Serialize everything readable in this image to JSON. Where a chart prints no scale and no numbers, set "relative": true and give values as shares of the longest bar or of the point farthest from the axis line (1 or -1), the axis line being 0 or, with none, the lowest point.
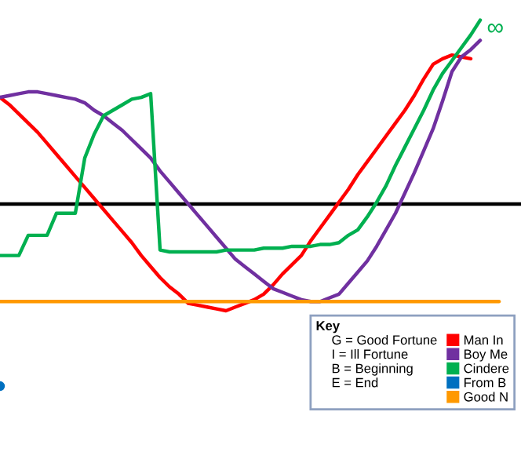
{
  "chart_data": {
    "type": "line",
    "relative": true,
    "legend": "bottom right",
    "legend_title": "Key",
    "categories": [
      null,
      null,
      null,
      null,
      null,
      null,
      null,
      null,
      null,
      null,
      null,
      null,
      null,
      null,
      null,
      null,
      null,
      null,
      null,
      null,
      null,
      null,
      null,
      null,
      null,
      null,
      null,
      null,
      null,
      null,
      null,
      null,
      null,
      null,
      null,
      null,
      null,
      null,
      null,
      null,
      null,
      null,
      null,
      null,
      null,
      null,
      null,
      null,
      null,
      null,
      null,
      null,
      null,
      null,
      null,
      null
    ],
    "annotations": [
      {
        "text": "∞"
      },
      "G = Good Fortune",
      "I = Ill Fortune",
      "B = Beginning",
      "E = End"
    ],
    "series": [
      {
        "name": "Man In",
        "color": "#ff0000",
        "values": [
          0.58,
          0.54,
          0.49,
          0.44,
          0.39,
          0.33,
          0.27,
          0.21,
          0.15,
          0.09,
          0.03,
          -0.03,
          -0.09,
          -0.15,
          -0.21,
          -0.28,
          -0.34,
          -0.4,
          -0.45,
          -0.49,
          -0.54,
          -0.55,
          -0.56,
          -0.57,
          -0.58,
          -0.56,
          -0.54,
          -0.52,
          -0.49,
          -0.44,
          -0.38,
          -0.33,
          -0.28,
          -0.2,
          -0.13,
          -0.06,
          0.01,
          0.08,
          0.16,
          0.23,
          0.3,
          0.37,
          0.44,
          0.51,
          0.59,
          0.68,
          0.76,
          0.79,
          0.81,
          0.8,
          0.79,
          null,
          null,
          null,
          null,
          null
        ]
      },
      {
        "name": "Boy Me",
        "color": "#7030a0",
        "values": [
          0.58,
          0.59,
          0.6,
          0.61,
          0.61,
          0.6,
          0.59,
          0.58,
          0.57,
          0.55,
          0.51,
          0.48,
          0.44,
          0.4,
          0.35,
          0.3,
          0.25,
          0.18,
          0.12,
          0.06,
          0,
          -0.06,
          -0.12,
          -0.18,
          -0.24,
          -0.3,
          -0.34,
          -0.38,
          -0.42,
          -0.46,
          -0.48,
          -0.5,
          -0.52,
          -0.53,
          -0.53,
          -0.51,
          -0.49,
          -0.43,
          -0.37,
          -0.31,
          -0.23,
          -0.14,
          -0.05,
          0.06,
          0.17,
          0.29,
          0.41,
          0.56,
          0.72,
          0.8,
          0.84,
          0.89,
          null,
          null,
          null,
          null
        ]
      },
      {
        "name": "Cindere",
        "color": "#00b050",
        "values": [
          -0.28,
          -0.28,
          -0.28,
          -0.17,
          -0.17,
          -0.17,
          -0.05,
          -0.05,
          -0.05,
          0.25,
          0.38,
          0.48,
          0.51,
          0.54,
          0.57,
          0.58,
          0.6,
          -0.25,
          -0.26,
          -0.26,
          -0.26,
          -0.26,
          -0.26,
          -0.26,
          -0.25,
          -0.25,
          -0.25,
          -0.25,
          -0.24,
          -0.24,
          -0.24,
          -0.23,
          -0.23,
          -0.23,
          -0.22,
          -0.22,
          -0.21,
          -0.17,
          -0.14,
          -0.07,
          0.01,
          0.1,
          0.21,
          0.31,
          0.41,
          0.51,
          0.62,
          0.71,
          0.78,
          0.85,
          0.92,
          1,
          null,
          null,
          null,
          null
        ]
      },
      {
        "name": "From B",
        "color": "#0070c0",
        "marker": "circle",
        "values": [
          -0.99,
          null,
          null,
          null,
          null,
          null,
          null,
          null,
          null,
          null,
          null,
          null,
          null,
          null,
          null,
          null,
          null,
          null,
          null,
          null,
          null,
          null,
          null,
          null,
          null,
          null,
          null,
          null,
          null,
          null,
          null,
          null,
          null,
          null,
          null,
          null,
          null,
          null,
          null,
          null,
          null,
          null,
          null,
          null,
          null,
          null,
          null,
          null,
          null,
          null,
          null,
          null,
          null,
          null,
          null,
          null
        ]
      },
      {
        "name": "Good N",
        "color": "#ff9900",
        "values": [
          -0.53,
          -0.53,
          -0.53,
          -0.53,
          -0.53,
          -0.53,
          -0.53,
          -0.53,
          -0.53,
          -0.53,
          -0.53,
          -0.53,
          -0.53,
          -0.53,
          -0.53,
          -0.53,
          -0.53,
          -0.53,
          -0.53,
          -0.53,
          -0.53,
          -0.53,
          -0.53,
          -0.53,
          -0.53,
          -0.53,
          -0.53,
          -0.53,
          -0.53,
          -0.53,
          -0.53,
          -0.53,
          -0.53,
          -0.53,
          -0.53,
          -0.53,
          -0.53,
          -0.53,
          -0.53,
          -0.53,
          -0.53,
          -0.53,
          -0.53,
          -0.53,
          -0.53,
          -0.53,
          -0.53,
          -0.53,
          -0.53,
          -0.53,
          -0.53,
          -0.53,
          -0.53,
          -0.53,
          null,
          null
        ]
      }
    ]
  }
}
